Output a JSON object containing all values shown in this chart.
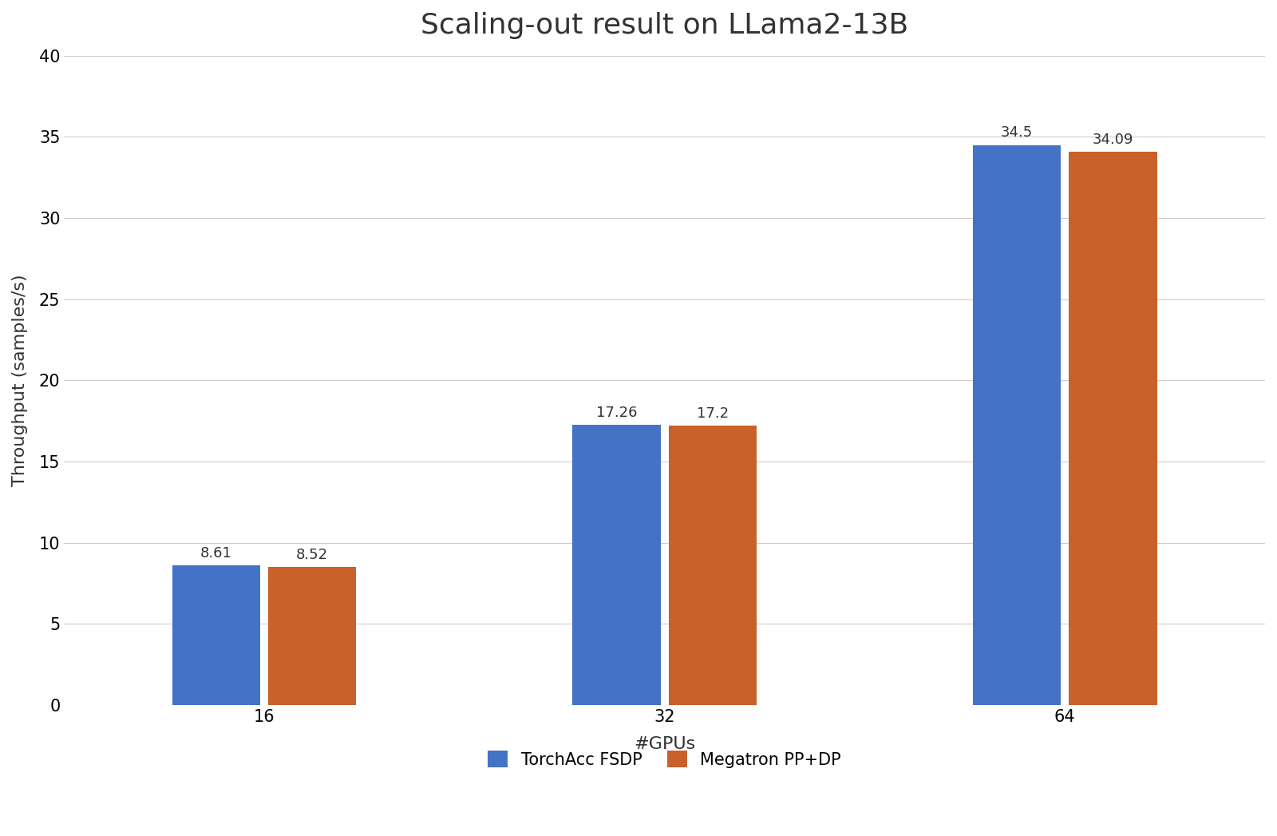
{
  "title": "Scaling-out result on LLama2-13B",
  "xlabel": "#GPUs",
  "ylabel": "Throughput (samples/s)",
  "categories": [
    "16",
    "32",
    "64"
  ],
  "series": [
    {
      "label": "TorchAcc FSDP",
      "values": [
        8.61,
        17.26,
        34.5
      ],
      "color": "#4472C4"
    },
    {
      "label": "Megatron PP+DP",
      "values": [
        8.52,
        17.2,
        34.09
      ],
      "color": "#C8612A"
    }
  ],
  "ylim": [
    0,
    40
  ],
  "yticks": [
    0,
    5,
    10,
    15,
    20,
    25,
    30,
    35,
    40
  ],
  "bar_width": 0.22,
  "background_color": "#FFFFFF",
  "grid_color": "#CCCCCC",
  "title_fontsize": 26,
  "axis_label_fontsize": 16,
  "tick_fontsize": 15,
  "annotation_fontsize": 13,
  "legend_fontsize": 15
}
